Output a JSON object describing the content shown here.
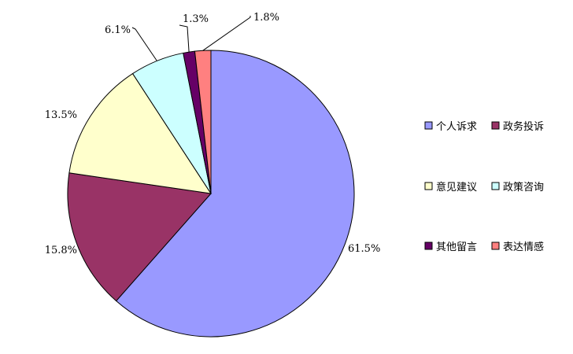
{
  "chart_data": {
    "type": "pie",
    "title": "",
    "categories": [
      "个人诉求",
      "政务投诉",
      "意见建议",
      "政策咨询",
      "其他留言",
      "表达情感"
    ],
    "values": [
      61.5,
      15.8,
      13.5,
      6.1,
      1.3,
      1.8
    ],
    "labels": [
      "61.5%",
      "15.8%",
      "13.5%",
      "6.1%",
      "1.3%",
      "1.8%"
    ],
    "colors": [
      "#9999FF",
      "#993366",
      "#FFFFCC",
      "#CCFFFF",
      "#660066",
      "#FF8080"
    ],
    "start_angle_deg": 0,
    "direction": "clockwise",
    "legend": {
      "position": "right",
      "columns": 2,
      "items": [
        "个人诉求",
        "政务投诉",
        "意见建议",
        "政策咨询",
        "其他留言",
        "表达情感"
      ]
    }
  }
}
